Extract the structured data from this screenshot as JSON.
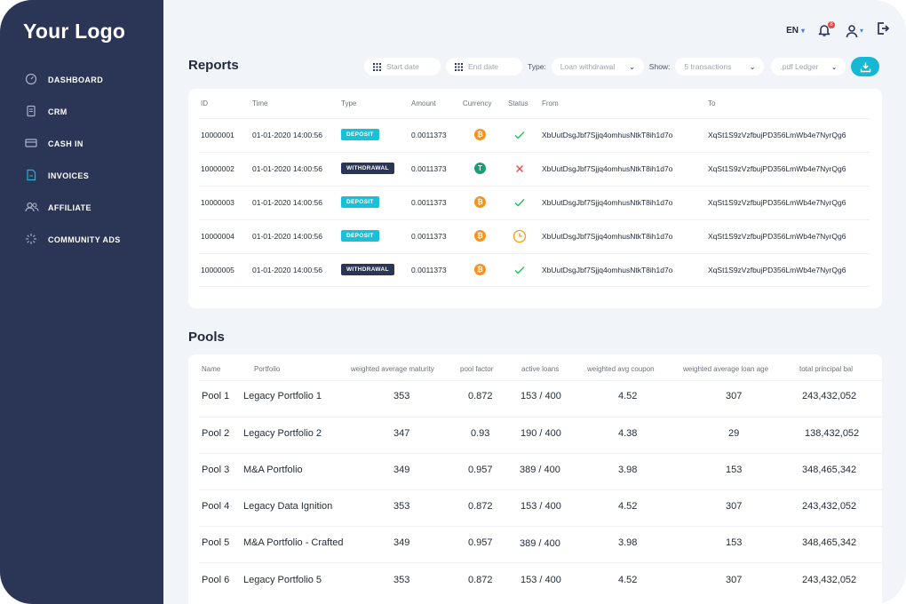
{
  "logo": "Your Logo",
  "nav": [
    {
      "label": "DASHBOARD",
      "icon": "dashboard-icon"
    },
    {
      "label": "CRM",
      "icon": "document-icon"
    },
    {
      "label": "CASH IN",
      "icon": "card-icon"
    },
    {
      "label": "INVOICES",
      "icon": "invoice-icon"
    },
    {
      "label": "AFFILIATE",
      "icon": "users-icon"
    },
    {
      "label": "COMMUNITY ADS",
      "icon": "sparkle-icon"
    }
  ],
  "colors": {
    "sidebar": "#2b3556",
    "accent": "#17b8d4",
    "deposit": "#17c1d9",
    "withdrawal": "#2b3556",
    "success": "#22c55e",
    "error": "#ef4444",
    "pending": "#f59e0b",
    "bitcoin": "#f7931a",
    "tether": "#1a9e77"
  },
  "topbar": {
    "language": "EN",
    "notification_count": "8"
  },
  "reports": {
    "title": "Reports",
    "filters": {
      "start_date": "Start date",
      "end_date": "End date",
      "type_label": "Type:",
      "type_value": "Loan withdrawal",
      "show_label": "Show:",
      "show_value": "5 transactions",
      "format_value": ".pdf Ledger"
    },
    "columns": [
      "ID",
      "Time",
      "Type",
      "Amount",
      "Currency",
      "Status",
      "From",
      "To"
    ],
    "rows": [
      {
        "id": "10000001",
        "time": "01-01-2020 14:00:56",
        "type": "DEPOSIT",
        "amount": "0.0011373",
        "currency": "BTC",
        "status": "success",
        "from": "XbUutDsgJbf7Sjjq4omhusNtkT8ih1d7o",
        "to": "XqSt1S9zVzfbujPD356LmWb4e7NyrQg6"
      },
      {
        "id": "10000002",
        "time": "01-01-2020 14:00:56",
        "type": "WITHDRAWAL",
        "amount": "0.0011373",
        "currency": "USDT",
        "status": "failed",
        "from": "XbUutDsgJbf7Sjjq4omhusNtkT8ih1d7o",
        "to": "XqSt1S9zVzfbujPD356LmWb4e7NyrQg6"
      },
      {
        "id": "10000003",
        "time": "01-01-2020 14:00:56",
        "type": "DEPOSIT",
        "amount": "0.0011373",
        "currency": "BTC",
        "status": "success",
        "from": "XbUutDsgJbf7Sjjq4omhusNtkT8ih1d7o",
        "to": "XqSt1S9zVzfbujPD356LmWb4e7NyrQg6"
      },
      {
        "id": "10000004",
        "time": "01-01-2020 14:00:56",
        "type": "DEPOSIT",
        "amount": "0.0011373",
        "currency": "BTC",
        "status": "pending",
        "from": "XbUutDsgJbf7Sjjq4omhusNtkT8ih1d7o",
        "to": "XqSt1S9zVzfbujPD356LmWb4e7NyrQg6"
      },
      {
        "id": "10000005",
        "time": "01-01-2020 14:00:56",
        "type": "WITHDRAWAL",
        "amount": "0.0011373",
        "currency": "BTC",
        "status": "success",
        "from": "XbUutDsgJbf7Sjjq4omhusNtkT8ih1d7o",
        "to": "XqSt1S9zVzfbujPD356LmWb4e7NyrQg6"
      }
    ]
  },
  "pools": {
    "title": "Pools",
    "columns": [
      "Name",
      "Portfolio",
      "weighted average maturity",
      "pool factor",
      "active loans",
      "weighted avg coupon",
      "weighted average loan age",
      "total principal bal"
    ],
    "rows": [
      {
        "name": "Pool 1",
        "portfolio": "Legacy Portfolio 1",
        "maturity": "353",
        "factor": "0.872",
        "loans": "153 / 400",
        "coupon": "4.52",
        "age": "307",
        "principal": "243,432,052"
      },
      {
        "name": "Pool 2",
        "portfolio": "Legacy Portfolio 2",
        "maturity": "347",
        "factor": "0.93",
        "loans": "190 / 400",
        "coupon": "4.38",
        "age": "29",
        "principal": "138,432,052"
      },
      {
        "name": "Pool 3",
        "portfolio": "M&A Portfolio",
        "maturity": "349",
        "factor": "0.957",
        "loans": "389 / 400",
        "coupon": "3.98",
        "age": "153",
        "principal": "348,465,342"
      },
      {
        "name": "Pool 4",
        "portfolio": "Legacy Data Ignition",
        "maturity": "353",
        "factor": "0.872",
        "loans": "153 / 400",
        "coupon": "4.52",
        "age": "307",
        "principal": "243,432,052"
      },
      {
        "name": "Pool 5",
        "portfolio": "M&A Portfolio - Crafted",
        "maturity": "349",
        "factor": "0.957",
        "loans": "389 / 400",
        "coupon": "3.98",
        "age": "153",
        "principal": "348,465,342"
      },
      {
        "name": "Pool 6",
        "portfolio": "Legacy Portfolio 5",
        "maturity": "353",
        "factor": "0.872",
        "loans": "153 / 400",
        "coupon": "4.52",
        "age": "307",
        "principal": "243,432,052"
      }
    ]
  }
}
